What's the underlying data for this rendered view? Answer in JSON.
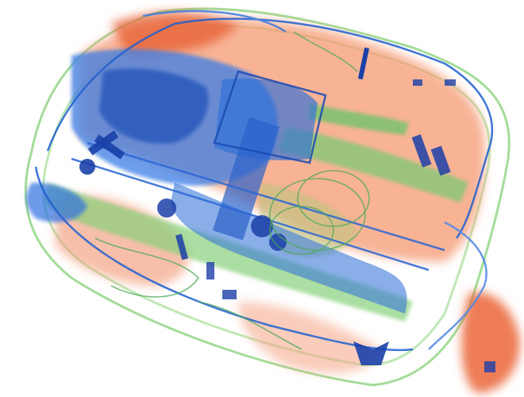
{
  "image": {
    "kind": "x-ray baggage scan",
    "palette": {
      "background": "#ffffff",
      "organic": "#f2875a",
      "organic_dark": "#d9552b",
      "inorganic": "#7fd17a",
      "metal": "#2f6fe0",
      "metal_dark": "#1a3aa8"
    }
  }
}
